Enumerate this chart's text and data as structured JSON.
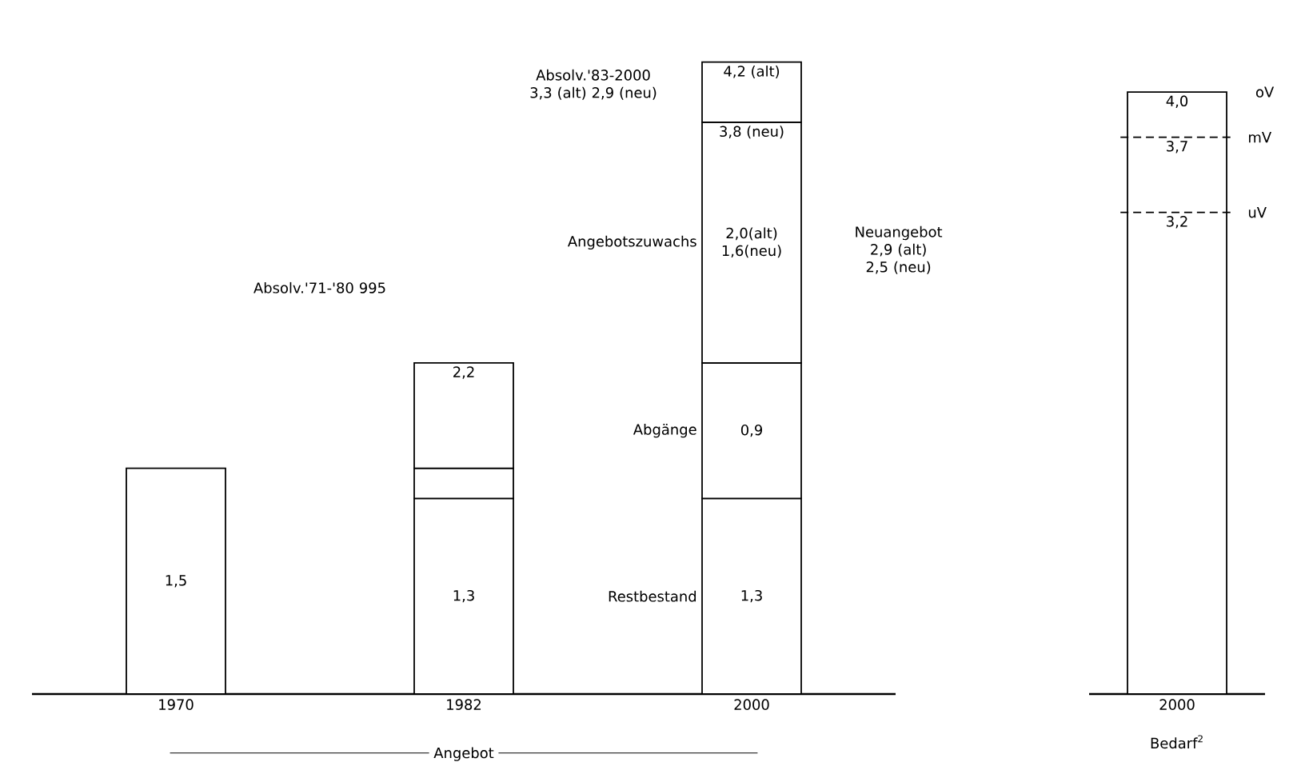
{
  "chart_data": [
    {
      "type": "bar",
      "stacked": true,
      "categories": [
        "1970",
        "1982",
        "2000"
      ],
      "xlabel": "Angebot",
      "series": [
        {
          "name": "Restbestand",
          "color": "#ffffff",
          "values": [
            1.5,
            1.3,
            1.3
          ],
          "value_labels": [
            "1,5",
            "1,3",
            "1,3"
          ]
        },
        {
          "name": "Abgänge",
          "color": "#ffffff",
          "values": [
            null,
            0.2,
            0.9
          ],
          "value_labels": [
            null,
            null,
            "0,9"
          ]
        },
        {
          "name": "Angebotszuwachs",
          "color": "#ffffff",
          "values": [
            null,
            0.7,
            1.6
          ],
          "value_labels": [
            null,
            null,
            "2,0(alt) 1,6(neu)"
          ]
        },
        {
          "color": "#ffffff",
          "values": [
            null,
            null,
            0.4
          ]
        }
      ],
      "annotations": [
        "Absolv.'71-'80 995",
        "Absolv.'83-2000 3,3 (alt) 2,9 (neu)",
        "Neuangebot 2,9 (alt) 2,5 (neu)",
        {
          "text": "2,2",
          "x": "1982",
          "y": 2.2
        },
        {
          "text": "4,2 (alt)",
          "x": "2000",
          "y": 4.2
        },
        {
          "text": "3,8 (neu)",
          "x": "2000",
          "y": 3.8
        }
      ]
    },
    {
      "type": "bar",
      "categories": [
        "2000"
      ],
      "xlabel": "Bedarf$^{2}$",
      "series": [
        {
          "color": "#ffffff",
          "values": [
            4.0
          ],
          "value_labels": [
            "4,0"
          ]
        }
      ],
      "ref_lines": [
        {
          "axis": "y",
          "value": 3.7,
          "label": "mV",
          "line_style": "dashed"
        },
        {
          "axis": "y",
          "value": 3.2,
          "label": "uV",
          "line_style": "dashed"
        }
      ],
      "annotations": [
        "oV",
        {
          "text": "3,7",
          "x": "2000",
          "y": 3.7
        },
        {
          "text": "3,2",
          "x": "2000",
          "y": 3.2
        }
      ]
    }
  ]
}
